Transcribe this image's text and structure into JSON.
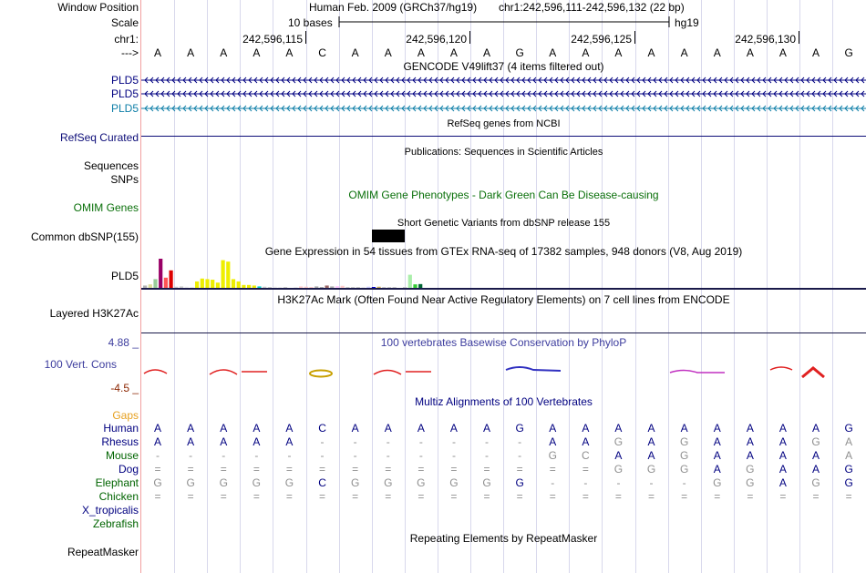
{
  "labels": {
    "window_position": "Window Position",
    "scale": "Scale",
    "chrom": "chr1:",
    "strand": "--->",
    "gene1": "PLD5",
    "gene2": "PLD5",
    "gene3": "PLD5",
    "refseq": "RefSeq Curated",
    "sequences": "Sequences",
    "snps": "SNPs",
    "omim": "OMIM Genes",
    "dbsnp": "Common dbSNP(155)",
    "gtex_gene": "PLD5",
    "h3k27ac": "Layered H3K27Ac",
    "cons_max": "4.88 _",
    "cons": "100 Vert. Cons",
    "cons_min": "-4.5 _",
    "gaps": "Gaps",
    "repeatmasker": "RepeatMasker"
  },
  "header": {
    "assembly": "Human Feb. 2009 (GRCh37/hg19)",
    "position": "chr1:242,596,111-242,596,132 (22 bp)",
    "scale_text": "10 bases",
    "db": "hg19",
    "ruler": [
      "242,596,115",
      "242,596,120",
      "242,596,125",
      "242,596,130"
    ]
  },
  "sequence": [
    "A",
    "A",
    "A",
    "A",
    "A",
    "C",
    "A",
    "A",
    "A",
    "A",
    "A",
    "G",
    "A",
    "A",
    "A",
    "A",
    "A",
    "A",
    "A",
    "A",
    "A",
    "G"
  ],
  "titles": {
    "gencode": "GENCODE V49lift37 (4 items filtered out)",
    "refseq": "RefSeq genes from NCBI",
    "publications": "Publications: Sequences in Scientific Articles",
    "omim": "OMIM Gene Phenotypes - Dark Green Can Be Disease-causing",
    "dbsnp": "Short Genetic Variants from dbSNP release 155",
    "gtex": "Gene Expression in 54 tissues from GTEx RNA-seq of 17382 samples, 948 donors (V8, Aug 2019)",
    "h3k27ac": "H3K27Ac Mark (Often Found Near Active Regulatory Elements) on 7 cell lines from ENCODE",
    "cons": "100 vertebrates Basewise Conservation by PhyloP",
    "multiz": "Multiz Alignments of 100 Vertebrates",
    "repeatmasker": "Repeating Elements by RepeatMasker"
  },
  "gtex_bars": [
    {
      "v": 0.08,
      "c": "#b2b2b2"
    },
    {
      "v": 0.12,
      "c": "#dddd99"
    },
    {
      "v": 0.3,
      "c": "#99cc99"
    },
    {
      "v": 1.0,
      "c": "#990066"
    },
    {
      "v": 0.35,
      "c": "#ff5555"
    },
    {
      "v": 0.6,
      "c": "#dd0000"
    },
    {
      "v": 0.04,
      "c": "#cccccc"
    },
    {
      "v": 0.05,
      "c": "#cccccc"
    },
    {
      "v": 0.04,
      "c": "#eeeeee"
    },
    {
      "v": 0.02,
      "c": "#eeeeee"
    },
    {
      "v": 0.22,
      "c": "#eeee00"
    },
    {
      "v": 0.32,
      "c": "#eeee00"
    },
    {
      "v": 0.3,
      "c": "#eeee00"
    },
    {
      "v": 0.28,
      "c": "#eeee00"
    },
    {
      "v": 0.18,
      "c": "#eeee00"
    },
    {
      "v": 0.95,
      "c": "#eeee00"
    },
    {
      "v": 0.9,
      "c": "#eeee00"
    },
    {
      "v": 0.3,
      "c": "#eeee00"
    },
    {
      "v": 0.22,
      "c": "#eeee00"
    },
    {
      "v": 0.1,
      "c": "#eeee00"
    },
    {
      "v": 0.1,
      "c": "#eeee00"
    },
    {
      "v": 0.08,
      "c": "#eeee00"
    },
    {
      "v": 0.05,
      "c": "#00cccc"
    },
    {
      "v": 0.04,
      "c": "#cccccc"
    },
    {
      "v": 0.03,
      "c": "#cccccc"
    },
    {
      "v": 0.04,
      "c": "#eeeeee"
    },
    {
      "v": 0.02,
      "c": "#eeeeee"
    },
    {
      "v": 0.03,
      "c": "#cccccc"
    },
    {
      "v": 0.0,
      "c": "#ffffff"
    },
    {
      "v": 0.01,
      "c": "#eeeeee"
    },
    {
      "v": 0.05,
      "c": "#ffcccc"
    },
    {
      "v": 0.04,
      "c": "#ffcccc"
    },
    {
      "v": 0.03,
      "c": "#ffcccc"
    },
    {
      "v": 0.05,
      "c": "#aaaaaa"
    },
    {
      "v": 0.02,
      "c": "#aaaaaa"
    },
    {
      "v": 0.08,
      "c": "#996666"
    },
    {
      "v": 0.05,
      "c": "#aaaaaa"
    },
    {
      "v": 0.06,
      "c": "#ffccff"
    },
    {
      "v": 0.07,
      "c": "#ffcccc"
    },
    {
      "v": 0.03,
      "c": "#cccccc"
    },
    {
      "v": 0.02,
      "c": "#cccccc"
    },
    {
      "v": 0.03,
      "c": "#cccccc"
    },
    {
      "v": 0.02,
      "c": "#eeeeee"
    },
    {
      "v": 0.04,
      "c": "#ccccff"
    },
    {
      "v": 0.02,
      "c": "#0000cc"
    },
    {
      "v": 0.04,
      "c": "#ccaa55"
    },
    {
      "v": 0.02,
      "c": "#cccccc"
    },
    {
      "v": 0.03,
      "c": "#cccccc"
    },
    {
      "v": 0.03,
      "c": "#cccccc"
    },
    {
      "v": 0.0,
      "c": "#ffffff"
    },
    {
      "v": 0.03,
      "c": "#cccccc"
    },
    {
      "v": 0.45,
      "c": "#aaeeaa"
    },
    {
      "v": 0.12,
      "c": "#33cc33"
    },
    {
      "v": 0.13,
      "c": "#006633"
    }
  ],
  "multiz": [
    {
      "name": "Human",
      "color": "#000080",
      "bases": [
        "A",
        "A",
        "A",
        "A",
        "A",
        "C",
        "A",
        "A",
        "A",
        "A",
        "A",
        "G",
        "A",
        "A",
        "A",
        "A",
        "A",
        "A",
        "A",
        "A",
        "A",
        "G"
      ]
    },
    {
      "name": "Rhesus",
      "color": "#000080",
      "bases": [
        "A",
        "A",
        "A",
        "A",
        "A",
        "-",
        "-",
        "-",
        "-",
        "-",
        "-",
        "-",
        "A",
        "A",
        "G",
        "A",
        "G",
        "A",
        "A",
        "A",
        "G",
        "A"
      ]
    },
    {
      "name": "Mouse",
      "color": "#006400",
      "bases": [
        "-",
        "-",
        "-",
        "-",
        "-",
        "-",
        "-",
        "-",
        "-",
        "-",
        "-",
        "-",
        "G",
        "C",
        "A",
        "A",
        "G",
        "A",
        "A",
        "A",
        "A",
        "A"
      ]
    },
    {
      "name": "Dog",
      "color": "#000080",
      "bases": [
        "=",
        "=",
        "=",
        "=",
        "=",
        "=",
        "=",
        "=",
        "=",
        "=",
        "=",
        "=",
        "=",
        "=",
        "G",
        "G",
        "G",
        "A",
        "G",
        "A",
        "A",
        "G"
      ]
    },
    {
      "name": "Elephant",
      "color": "#006400",
      "bases": [
        "G",
        "G",
        "G",
        "G",
        "G",
        "C",
        "G",
        "G",
        "G",
        "G",
        "G",
        "G",
        "-",
        "-",
        "-",
        "-",
        "-",
        "G",
        "G",
        "A",
        "G",
        "G"
      ]
    },
    {
      "name": "Chicken",
      "color": "#006400",
      "bases": [
        "=",
        "=",
        "=",
        "=",
        "=",
        "=",
        "=",
        "=",
        "=",
        "=",
        "=",
        "=",
        "=",
        "=",
        "=",
        "=",
        "=",
        "=",
        "=",
        "=",
        "=",
        "="
      ]
    },
    {
      "name": "X_tropicalis",
      "color": "#000080",
      "bases": []
    },
    {
      "name": "Zebrafish",
      "color": "#006400",
      "bases": []
    }
  ],
  "colors": {
    "ruler_blue": "#000080",
    "gencode_dark": "#000080",
    "gencode_light": "#0d7ea7",
    "refseq": "#0c0c78",
    "omim": "#0a700a",
    "cons": "#3d3d9e",
    "cons_min": "#8b2500",
    "gaps": "#e6a020",
    "grid": "#d8d8ec"
  }
}
